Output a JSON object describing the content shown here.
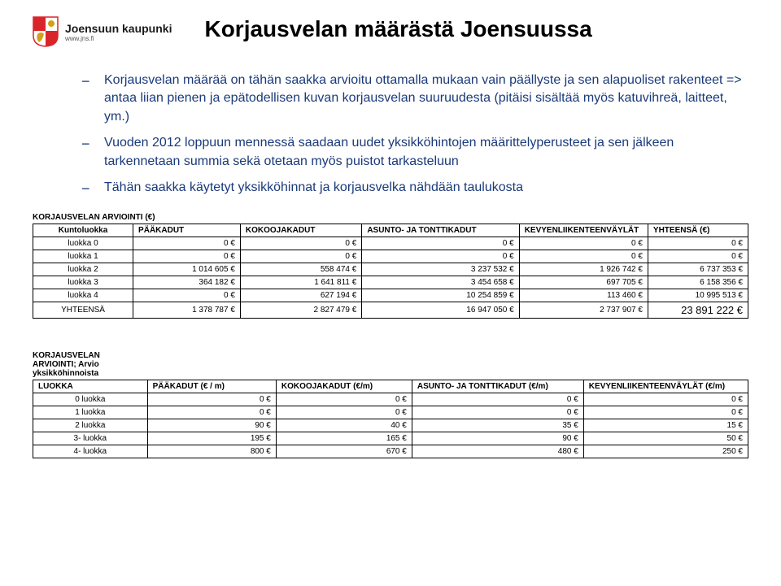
{
  "logo": {
    "brand": "Joensuun kaupunki",
    "sub": "www.jns.fi"
  },
  "title": "Korjausvelan määrästä Joensuussa",
  "bullets": [
    "Korjausvelan määrää on tähän saakka arvioitu ottamalla mukaan vain päällyste ja sen alapuoliset rakenteet => antaa liian pienen ja epätodellisen kuvan korjausvelan suuruudesta (pitäisi sisältää myös katuvihreä, laitteet, ym.)",
    "Vuoden 2012 loppuun mennessä saadaan uudet yksikköhintojen määrittelyperusteet ja sen jälkeen tarkennetaan summia sekä otetaan myös puistot tarkasteluun",
    "Tähän saakka käytetyt yksikköhinnat ja korjausvelka nähdään taulukosta"
  ],
  "table1": {
    "title": "KORJAUSVELAN ARVIOINTI (€)",
    "columns": [
      "Kuntoluokka",
      "PÄÄKADUT",
      "KOKOOJAKADUT",
      "ASUNTO- JA TONTTIKADUT",
      "KEVYENLIIKENTEENVÄYLÄT",
      "YHTEENSÄ (€)"
    ],
    "rows": [
      [
        "luokka 0",
        "0 €",
        "0 €",
        "0 €",
        "0 €",
        "0 €"
      ],
      [
        "luokka 1",
        "0 €",
        "0 €",
        "0 €",
        "0 €",
        "0 €"
      ],
      [
        "luokka 2",
        "1 014 605 €",
        "558 474 €",
        "3 237 532 €",
        "1 926 742 €",
        "6 737 353 €"
      ],
      [
        "luokka 3",
        "364 182 €",
        "1 641 811 €",
        "3 454 658 €",
        "697 705 €",
        "6 158 356 €"
      ],
      [
        "luokka 4",
        "0 €",
        "627 194 €",
        "10 254 859 €",
        "113 460 €",
        "10 995 513 €"
      ],
      [
        "YHTEENSÄ",
        "1 378 787 €",
        "2 827 479 €",
        "16 947 050 €",
        "2 737 907 €",
        "23 891 222 €"
      ]
    ],
    "col_widths": [
      "14%",
      "15%",
      "17%",
      "22%",
      "18%",
      "14%"
    ]
  },
  "table2": {
    "title": "KORJAUSVELAN ARVIOINTI; Arvio yksikköhinnoista",
    "columns": [
      "LUOKKA",
      "PÄÄKADUT (€ / m)",
      "KOKOOJAKADUT (€/m)",
      "ASUNTO- JA TONTTIKADUT (€/m)",
      "KEVYENLIIKENTEENVÄYLÄT (€/m)"
    ],
    "rows": [
      [
        "0 luokka",
        "0 €",
        "0 €",
        "0 €",
        "0 €"
      ],
      [
        "1 luokka",
        "0 €",
        "0 €",
        "0 €",
        "0 €"
      ],
      [
        "2 luokka",
        "90 €",
        "40 €",
        "35 €",
        "15 €"
      ],
      [
        "3- luokka",
        "195 €",
        "165 €",
        "90 €",
        "50 €"
      ],
      [
        "4- luokka",
        "800 €",
        "670 €",
        "480 €",
        "250 €"
      ]
    ],
    "col_widths": [
      "16%",
      "18%",
      "19%",
      "24%",
      "23%"
    ]
  },
  "colors": {
    "bullet_text": "#1a3a7a",
    "shield_red": "#d9252a",
    "shield_gold": "#d4a017",
    "border": "#000000"
  }
}
